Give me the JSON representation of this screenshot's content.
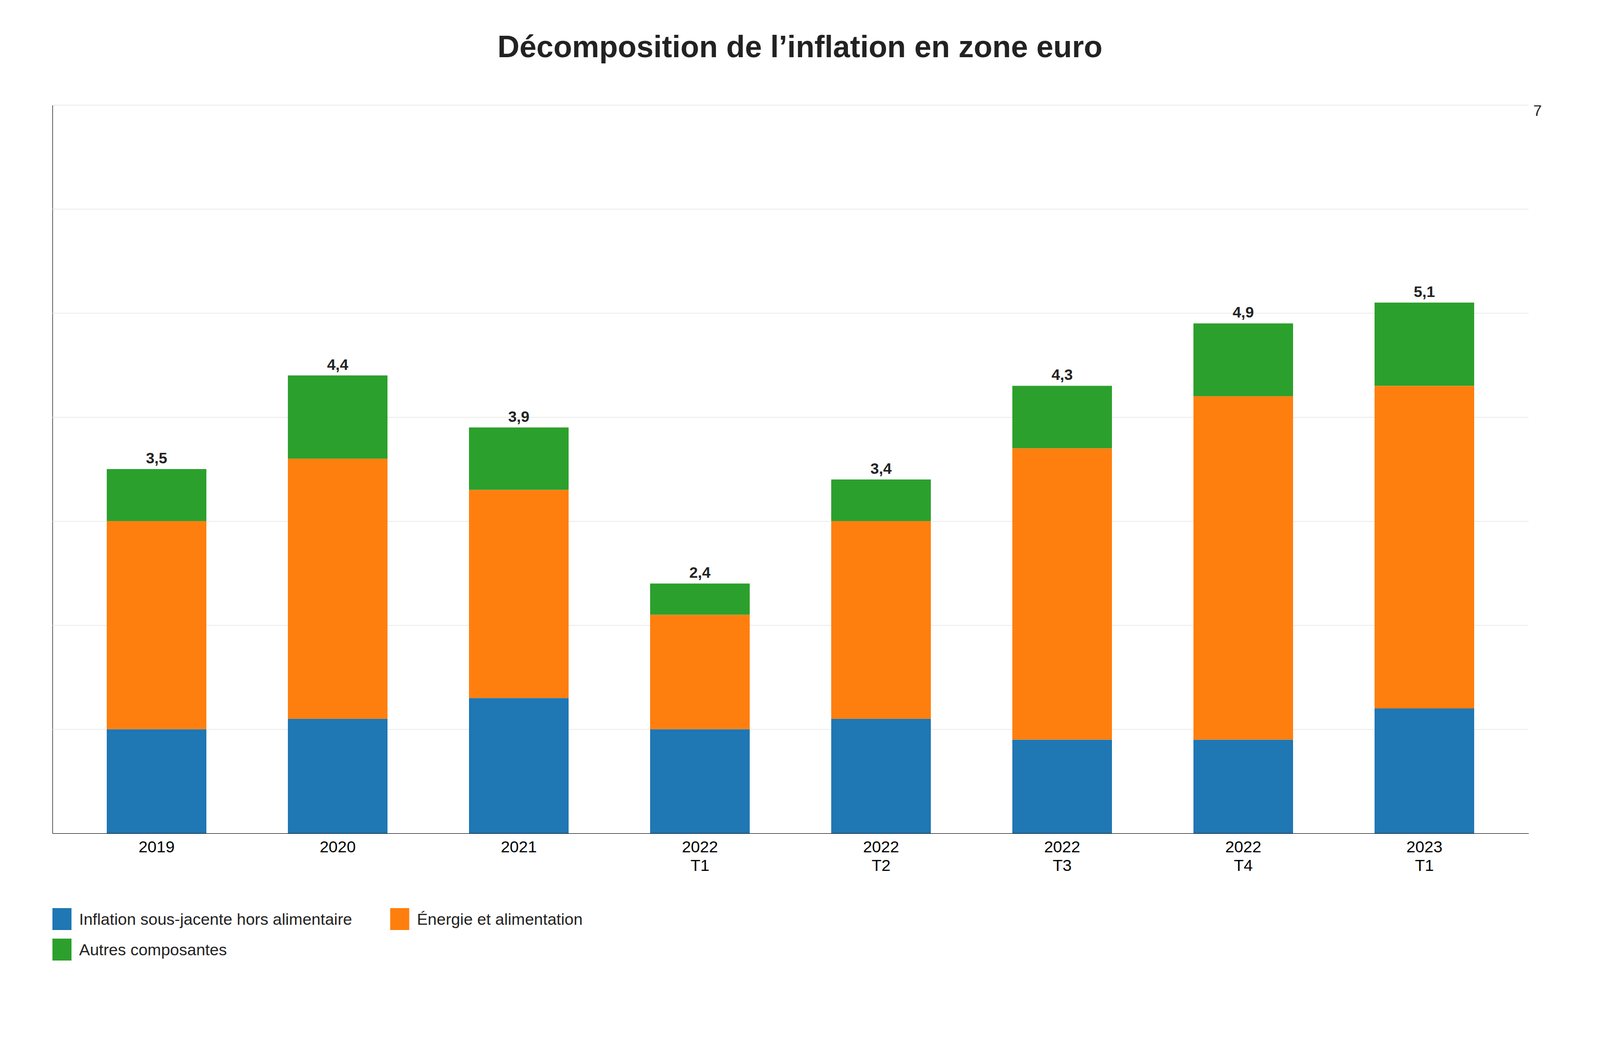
{
  "chart_data": {
    "type": "bar",
    "title": "Décomposition de l’inflation en zone euro",
    "categories": [
      "2019",
      "2020",
      "2021",
      "2022\nT1",
      "2022\nT2",
      "2022\nT3",
      "2022\nT4",
      "2023\nT1"
    ],
    "series": [
      {
        "name": "Inflation sous-jacente hors alimentaire",
        "color": "#1F77B4",
        "values": [
          1.0,
          1.1,
          1.3,
          1.0,
          1.1,
          0.9,
          0.9,
          1.2
        ]
      },
      {
        "name": "Énergie et alimentation",
        "color": "#FF7F0E",
        "values": [
          2.0,
          2.5,
          2.0,
          1.1,
          1.9,
          2.8,
          3.3,
          3.1
        ]
      },
      {
        "name": "Autres composantes",
        "color": "#2CA02C",
        "values": [
          0.5,
          0.8,
          0.6,
          0.3,
          0.4,
          0.6,
          0.7,
          0.8
        ]
      }
    ],
    "stacked": true,
    "ylim": [
      0,
      7
    ],
    "yticks": [
      1,
      2,
      3,
      4,
      5,
      6,
      7
    ],
    "tick_labels": "x",
    "grid": true,
    "legend": "bottom",
    "totals": [
      3.5,
      4.4,
      3.9,
      2.4,
      3.4,
      4.3,
      4.9,
      5.1
    ],
    "total_labels": [
      "3,5",
      "4,4",
      "3,9",
      "2,4",
      "3,4",
      "4,3",
      "4,9",
      "5,1"
    ],
    "annotations": [
      {
        "text": "7",
        "y": 7
      }
    ]
  }
}
